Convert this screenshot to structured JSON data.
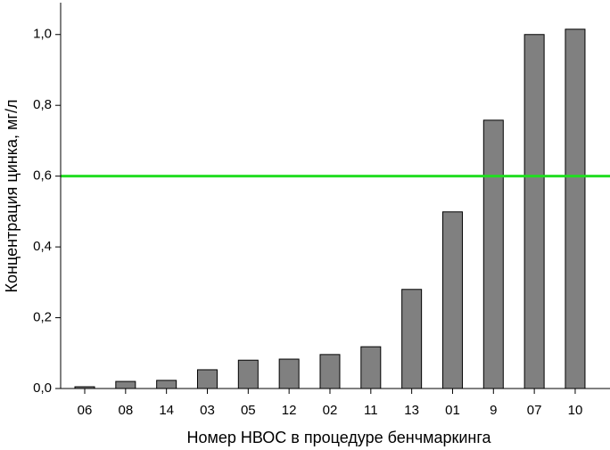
{
  "chart_data": {
    "type": "bar",
    "x_label": "Номер НВОС в процедуре бенчмаркинга",
    "y_label": "Концентрация цинка, мг/л",
    "categories": [
      "06",
      "08",
      "14",
      "03",
      "05",
      "12",
      "02",
      "11",
      "13",
      "01",
      "9",
      "07",
      "10"
    ],
    "values": [
      0.005,
      0.02,
      0.023,
      0.053,
      0.08,
      0.083,
      0.096,
      0.118,
      0.28,
      0.499,
      0.758,
      1.0,
      1.015
    ],
    "color": "#808080",
    "ylim": [
      0,
      1.09
    ],
    "yticks": [
      {
        "value": 0,
        "label": "0,0"
      },
      {
        "value": 0.2,
        "label": "0,2"
      },
      {
        "value": 0.4,
        "label": "0,4"
      },
      {
        "value": 0.6,
        "label": "0,6"
      },
      {
        "value": 0.8,
        "label": "0,8"
      },
      {
        "value": 1.0,
        "label": "1,0"
      }
    ],
    "threshold": 0.6,
    "threshold_color": "#22dd22"
  }
}
